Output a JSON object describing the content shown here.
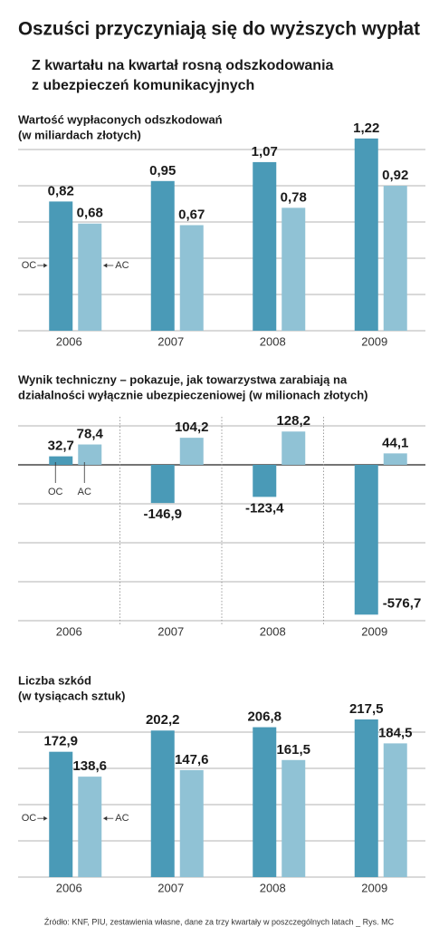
{
  "title": "Oszuści przyczyniają się do wyższych wypłat",
  "subtitle": [
    "Z kwartału na kwartał rosną odszkodowania",
    "z ubezpieczeń komunikacyjnych"
  ],
  "chart_data": [
    {
      "type": "bar",
      "title": [
        "Wartość wypłaconych odszkodowań",
        "(w miliardach złotych)"
      ],
      "categories": [
        "2006",
        "2007",
        "2008",
        "2009"
      ],
      "series": [
        {
          "name": "OC",
          "color": "#4a9ab7",
          "values": [
            0.82,
            0.95,
            1.07,
            1.22
          ],
          "value_labels": [
            "0,82",
            "0,95",
            "1,07",
            "1,22"
          ]
        },
        {
          "name": "AC",
          "color": "#90c2d5",
          "values": [
            0.68,
            0.67,
            0.78,
            0.92
          ],
          "value_labels": [
            "0,68",
            "0,67",
            "0,78",
            "0,92"
          ]
        }
      ],
      "ylim": [
        0,
        1.15
      ],
      "yticks": [
        0,
        0.23,
        0.46,
        0.69,
        0.92,
        1.15
      ],
      "grid": true
    },
    {
      "type": "bar",
      "title": [
        "Wynik techniczny – pokazuje, jak towarzystwa zarabiają na",
        "działalności wyłącznie ubezpieczeniowej (w milionach złotych)"
      ],
      "categories": [
        "2006",
        "2007",
        "2008",
        "2009"
      ],
      "series": [
        {
          "name": "OC",
          "color": "#4a9ab7",
          "values": [
            32.7,
            -146.9,
            -123.4,
            -576.7
          ],
          "value_labels": [
            "32,7",
            "-146,9",
            "-123,4",
            "-576,7"
          ]
        },
        {
          "name": "AC",
          "color": "#90c2d5",
          "values": [
            78.4,
            104.2,
            128.2,
            44.1
          ],
          "value_labels": [
            "78,4",
            "104,2",
            "128,2",
            "44,1"
          ]
        }
      ],
      "ylim": [
        -600,
        150
      ],
      "yticks": [
        -600,
        -450,
        -300,
        -150,
        0,
        150
      ],
      "grid": true
    },
    {
      "type": "bar",
      "title": [
        "Liczba szkód",
        "(w tysiącach sztuk)"
      ],
      "categories": [
        "2006",
        "2007",
        "2008",
        "2009"
      ],
      "series": [
        {
          "name": "OC",
          "color": "#4a9ab7",
          "values": [
            172.9,
            202.2,
            206.8,
            217.5
          ],
          "value_labels": [
            "172,9",
            "202,2",
            "206,8",
            "217,5"
          ]
        },
        {
          "name": "AC",
          "color": "#90c2d5",
          "values": [
            138.6,
            147.6,
            161.5,
            184.5
          ],
          "value_labels": [
            "138,6",
            "147,6",
            "161,5",
            "184,5"
          ]
        }
      ],
      "ylim": [
        0,
        225
      ],
      "yticks": [
        0,
        50,
        100,
        150,
        200
      ],
      "grid": true
    }
  ],
  "source": "Źródło: KNF, PIU, zestawienia własne, dane za trzy kwartały w poszczególnych latach _ Rys. MC"
}
